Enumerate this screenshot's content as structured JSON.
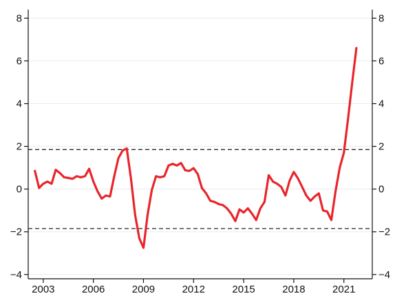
{
  "chart_data": {
    "type": "line",
    "title": "",
    "xlabel": "",
    "ylabel": "",
    "xlim": [
      2002.1,
      2022.7
    ],
    "ylim": [
      -4.2,
      8.4
    ],
    "x_ticks": [
      2003,
      2006,
      2009,
      2012,
      2015,
      2018,
      2021
    ],
    "y_ticks": [
      -4,
      -2,
      0,
      2,
      4,
      6,
      8
    ],
    "y_tick_labels": [
      "−4",
      "−2",
      "0",
      "2",
      "4",
      "6",
      "8"
    ],
    "reference_lines": [
      1.85,
      -1.85
    ],
    "grid": true,
    "colors": {
      "series": "#e8252b",
      "reference": "#111111",
      "grid": "#e4ecf1",
      "axis": "#111111"
    },
    "series": [
      {
        "x": [
          2002.5,
          2002.75,
          2003.0,
          2003.25,
          2003.5,
          2003.75,
          2004.0,
          2004.25,
          2004.5,
          2004.75,
          2005.0,
          2005.25,
          2005.5,
          2005.75,
          2006.0,
          2006.25,
          2006.5,
          2006.75,
          2007.0,
          2007.25,
          2007.5,
          2007.75,
          2008.0,
          2008.25,
          2008.5,
          2008.75,
          2009.0,
          2009.25,
          2009.5,
          2009.75,
          2010.0,
          2010.25,
          2010.5,
          2010.75,
          2011.0,
          2011.25,
          2011.5,
          2011.75,
          2012.0,
          2012.25,
          2012.5,
          2012.75,
          2013.0,
          2013.25,
          2013.5,
          2013.75,
          2014.0,
          2014.25,
          2014.5,
          2014.75,
          2015.0,
          2015.25,
          2015.5,
          2015.75,
          2016.0,
          2016.25,
          2016.5,
          2016.75,
          2017.0,
          2017.25,
          2017.5,
          2017.75,
          2018.0,
          2018.25,
          2018.5,
          2018.75,
          2019.0,
          2019.25,
          2019.5,
          2019.75,
          2020.0,
          2020.25,
          2020.5,
          2020.75,
          2021.0,
          2021.25,
          2021.5,
          2021.75
        ],
        "values": [
          0.85,
          0.05,
          0.25,
          0.35,
          0.25,
          0.9,
          0.75,
          0.55,
          0.52,
          0.48,
          0.6,
          0.55,
          0.6,
          0.95,
          0.35,
          -0.1,
          -0.45,
          -0.3,
          -0.35,
          0.6,
          1.45,
          1.8,
          1.9,
          0.5,
          -1.2,
          -2.3,
          -2.75,
          -1.2,
          -0.05,
          0.6,
          0.55,
          0.6,
          1.1,
          1.18,
          1.1,
          1.22,
          0.88,
          0.85,
          0.98,
          0.7,
          0.05,
          -0.2,
          -0.55,
          -0.6,
          -0.7,
          -0.75,
          -0.9,
          -1.15,
          -1.5,
          -0.95,
          -1.1,
          -0.9,
          -1.15,
          -1.45,
          -0.9,
          -0.6,
          0.65,
          0.35,
          0.25,
          0.1,
          -0.3,
          0.4,
          0.8,
          0.5,
          0.1,
          -0.3,
          -0.55,
          -0.35,
          -0.2,
          -1.0,
          -1.05,
          -1.45,
          -0.1,
          1.0,
          1.7,
          3.3,
          5.0,
          6.6
        ]
      }
    ]
  }
}
